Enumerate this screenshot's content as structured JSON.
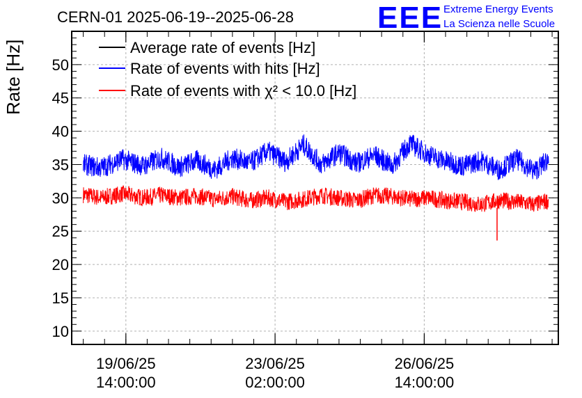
{
  "chart_data": {
    "type": "line",
    "title": "CERN-01 2025-06-19--2025-06-28",
    "ylabel": "Rate [Hz]",
    "xlabel": "",
    "ylim": [
      8,
      55
    ],
    "yticks": [
      10,
      15,
      20,
      25,
      30,
      35,
      40,
      45,
      50
    ],
    "x_axis_type": "datetime",
    "xlim": [
      "2025-06-18T07:30:00",
      "2025-06-29T17:30:00"
    ],
    "xticks": [
      {
        "x": "2025-06-19T14:00:00",
        "label_date": "19/06/25",
        "label_time": "14:00:00"
      },
      {
        "x": "2025-06-23T02:00:00",
        "label_date": "23/06/25",
        "label_time": "02:00:00"
      },
      {
        "x": "2025-06-26T14:00:00",
        "label_date": "26/06/25",
        "label_time": "14:00:00"
      }
    ],
    "grid": true,
    "legend_position": "top-left",
    "series": [
      {
        "name": "Average rate of events [Hz]",
        "color": "#000000",
        "x": [],
        "y": []
      },
      {
        "name": "Rate of events with hits [Hz]",
        "color": "#0000ff",
        "noise_hz": 1.6,
        "x": [
          "2025-06-18T14:00:00",
          "2025-06-19T00:00:00",
          "2025-06-19T12:00:00",
          "2025-06-20T00:00:00",
          "2025-06-20T10:00:00",
          "2025-06-20T20:00:00",
          "2025-06-21T06:00:00",
          "2025-06-21T16:00:00",
          "2025-06-22T02:00:00",
          "2025-06-22T12:00:00",
          "2025-06-22T22:00:00",
          "2025-06-23T08:00:00",
          "2025-06-23T18:00:00",
          "2025-06-24T04:00:00",
          "2025-06-24T14:00:00",
          "2025-06-25T00:00:00",
          "2025-06-25T10:00:00",
          "2025-06-25T20:00:00",
          "2025-06-26T06:00:00",
          "2025-06-26T16:00:00",
          "2025-06-27T02:00:00",
          "2025-06-27T12:00:00",
          "2025-06-27T22:00:00",
          "2025-06-28T08:00:00",
          "2025-06-28T18:00:00",
          "2025-06-29T04:00:00",
          "2025-06-29T12:00:00"
        ],
        "y": [
          35.0,
          34.5,
          35.8,
          34.8,
          36.0,
          34.6,
          35.6,
          34.2,
          36.0,
          35.2,
          37.0,
          35.4,
          38.0,
          35.0,
          36.8,
          35.2,
          36.4,
          34.8,
          38.2,
          36.5,
          35.5,
          34.8,
          35.6,
          34.2,
          35.8,
          34.0,
          35.8
        ]
      },
      {
        "name": "Rate of events with χ² < 10.0 [Hz]",
        "color": "#ff0000",
        "noise_hz": 1.3,
        "x": [
          "2025-06-18T14:00:00",
          "2025-06-19T00:00:00",
          "2025-06-19T12:00:00",
          "2025-06-20T00:00:00",
          "2025-06-20T10:00:00",
          "2025-06-20T20:00:00",
          "2025-06-21T06:00:00",
          "2025-06-21T16:00:00",
          "2025-06-22T02:00:00",
          "2025-06-22T12:00:00",
          "2025-06-22T22:00:00",
          "2025-06-23T08:00:00",
          "2025-06-23T18:00:00",
          "2025-06-24T04:00:00",
          "2025-06-24T14:00:00",
          "2025-06-25T00:00:00",
          "2025-06-25T10:00:00",
          "2025-06-25T20:00:00",
          "2025-06-26T06:00:00",
          "2025-06-26T16:00:00",
          "2025-06-27T02:00:00",
          "2025-06-27T12:00:00",
          "2025-06-27T22:00:00",
          "2025-06-28T08:00:00",
          "2025-06-28T18:00:00",
          "2025-06-29T04:00:00",
          "2025-06-29T12:00:00"
        ],
        "y": [
          30.5,
          30.0,
          30.6,
          30.0,
          30.4,
          30.0,
          30.3,
          29.8,
          30.2,
          29.6,
          30.0,
          29.4,
          29.8,
          30.4,
          30.0,
          29.6,
          30.4,
          30.2,
          29.8,
          30.0,
          29.6,
          29.4,
          29.0,
          29.6,
          29.4,
          29.0,
          29.6
        ],
        "outlier": {
          "x": "2025-06-28T07:00:00",
          "y": 23.6
        }
      }
    ],
    "logo": {
      "text": "EEE",
      "line1": "Extreme Energy Events",
      "line2": "La Scienza nelle Scuole"
    }
  }
}
